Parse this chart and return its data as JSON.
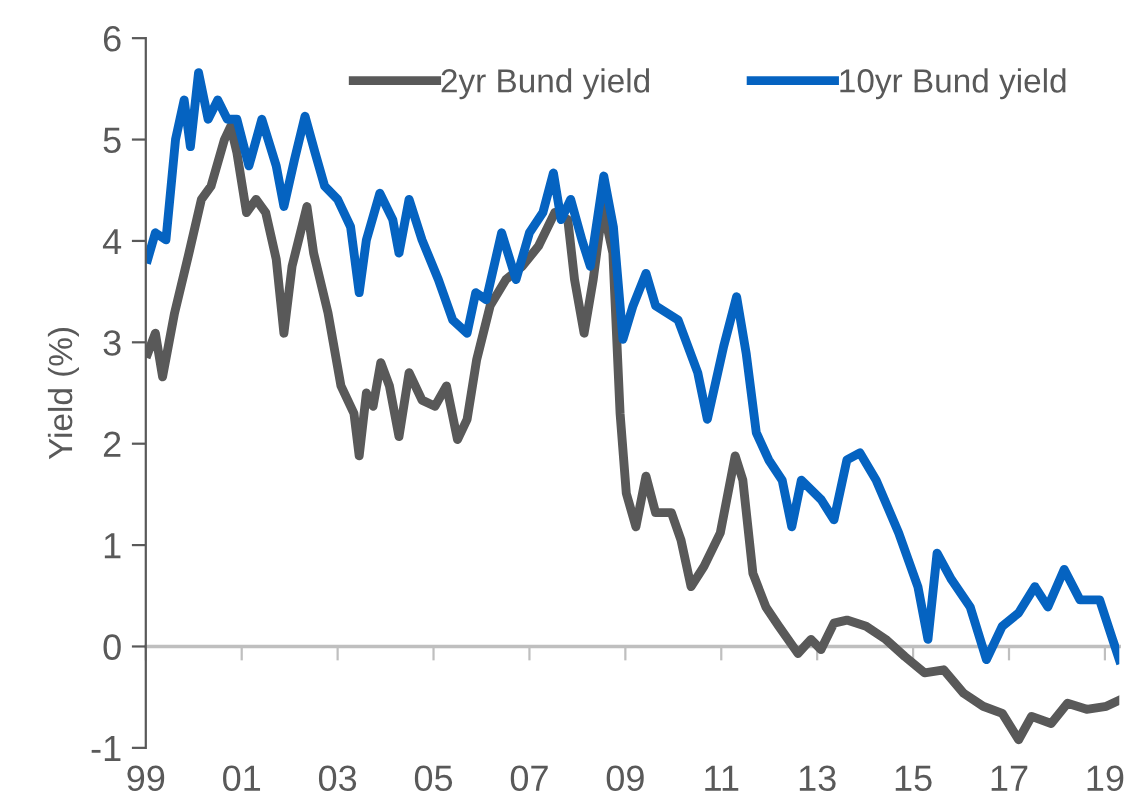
{
  "chart_data": {
    "type": "line",
    "ylabel": "Yield (%)",
    "xlim": [
      1999,
      2019.3
    ],
    "xticks": [
      {
        "value": 1999,
        "label": "99"
      },
      {
        "value": 2001,
        "label": "01"
      },
      {
        "value": 2003,
        "label": "03"
      },
      {
        "value": 2005,
        "label": "05"
      },
      {
        "value": 2007,
        "label": "07"
      },
      {
        "value": 2009,
        "label": "09"
      },
      {
        "value": 2011,
        "label": "11"
      },
      {
        "value": 2013,
        "label": "13"
      },
      {
        "value": 2015,
        "label": "15"
      },
      {
        "value": 2017,
        "label": "17"
      },
      {
        "value": 2019,
        "label": "19"
      }
    ],
    "ylim": [
      -1,
      6
    ],
    "yticks": [
      -1,
      0,
      1,
      2,
      3,
      4,
      5,
      6
    ],
    "legend": "top",
    "marker": "none",
    "line_style": "solid",
    "series": [
      {
        "name": "2yr Bund yield",
        "color": "#595959",
        "x": [
          1999.04,
          1999.2,
          1999.35,
          1999.6,
          1999.9,
          2000.16,
          2000.36,
          2000.64,
          2000.77,
          2000.9,
          2001.1,
          2001.3,
          2001.5,
          2001.72,
          2001.88,
          2002.05,
          2002.36,
          2002.5,
          2002.8,
          2003.07,
          2003.34,
          2003.45,
          2003.6,
          2003.74,
          2003.9,
          2004.08,
          2004.28,
          2004.49,
          2004.76,
          2005.03,
          2005.27,
          2005.5,
          2005.7,
          2005.9,
          2006.18,
          2006.51,
          2006.85,
          2007.19,
          2007.53,
          2007.8,
          2007.94,
          2008.14,
          2008.33,
          2008.53,
          2008.74,
          2008.89,
          2009.02,
          2009.22,
          2009.43,
          2009.63,
          2009.96,
          2010.16,
          2010.37,
          2010.64,
          2010.98,
          2011.29,
          2011.45,
          2011.66,
          2011.93,
          2012.2,
          2012.6,
          2012.87,
          2013.08,
          2013.35,
          2013.62,
          2014.02,
          2014.43,
          2014.83,
          2015.24,
          2015.64,
          2016.05,
          2016.46,
          2016.86,
          2017.2,
          2017.47,
          2017.88,
          2018.22,
          2018.62,
          2019.03,
          2019.3
        ],
        "values": [
          2.89,
          3.09,
          2.66,
          3.29,
          3.88,
          4.41,
          4.54,
          5.0,
          5.13,
          4.87,
          4.28,
          4.41,
          4.28,
          3.82,
          3.09,
          3.75,
          4.34,
          3.88,
          3.29,
          2.57,
          2.3,
          1.88,
          2.5,
          2.37,
          2.8,
          2.57,
          2.07,
          2.7,
          2.43,
          2.37,
          2.57,
          2.04,
          2.24,
          2.83,
          3.36,
          3.62,
          3.75,
          3.95,
          4.28,
          4.21,
          3.62,
          3.09,
          3.62,
          4.34,
          3.88,
          2.3,
          1.51,
          1.18,
          1.68,
          1.32,
          1.32,
          1.05,
          0.59,
          0.79,
          1.12,
          1.88,
          1.64,
          0.72,
          0.39,
          0.2,
          -0.07,
          0.07,
          -0.03,
          0.23,
          0.26,
          0.2,
          0.07,
          -0.1,
          -0.26,
          -0.23,
          -0.46,
          -0.59,
          -0.66,
          -0.92,
          -0.69,
          -0.76,
          -0.56,
          -0.62,
          -0.59,
          -0.53
        ]
      },
      {
        "name": "10yr Bund yield",
        "color": "#0563c1",
        "x": [
          1999.04,
          1999.2,
          1999.42,
          1999.62,
          1999.8,
          1999.93,
          2000.1,
          2000.3,
          2000.5,
          2000.7,
          2000.9,
          2001.15,
          2001.42,
          2001.72,
          2001.88,
          2002.1,
          2002.32,
          2002.53,
          2002.73,
          2003.0,
          2003.27,
          2003.45,
          2003.6,
          2003.88,
          2004.15,
          2004.28,
          2004.49,
          2004.76,
          2005.1,
          2005.4,
          2005.7,
          2005.88,
          2006.1,
          2006.42,
          2006.72,
          2007.0,
          2007.28,
          2007.5,
          2007.66,
          2007.86,
          2008.1,
          2008.27,
          2008.55,
          2008.75,
          2008.95,
          2009.16,
          2009.43,
          2009.63,
          2010.1,
          2010.51,
          2010.71,
          2011.05,
          2011.32,
          2011.52,
          2011.73,
          2011.99,
          2012.27,
          2012.47,
          2012.67,
          2013.08,
          2013.35,
          2013.62,
          2013.89,
          2014.23,
          2014.7,
          2015.1,
          2015.31,
          2015.5,
          2015.8,
          2016.19,
          2016.53,
          2016.86,
          2017.2,
          2017.54,
          2017.81,
          2018.15,
          2018.48,
          2018.89,
          2019.16,
          2019.3
        ],
        "values": [
          3.82,
          4.08,
          4.01,
          5.0,
          5.39,
          4.93,
          5.66,
          5.2,
          5.39,
          5.2,
          5.2,
          4.74,
          5.2,
          4.74,
          4.34,
          4.8,
          5.23,
          4.87,
          4.54,
          4.41,
          4.14,
          3.49,
          4.01,
          4.47,
          4.21,
          3.88,
          4.41,
          4.01,
          3.62,
          3.22,
          3.09,
          3.49,
          3.42,
          4.08,
          3.62,
          4.08,
          4.28,
          4.67,
          4.21,
          4.41,
          4.0,
          3.75,
          4.64,
          4.14,
          3.03,
          3.36,
          3.68,
          3.36,
          3.22,
          2.7,
          2.24,
          2.96,
          3.45,
          2.89,
          2.11,
          1.84,
          1.64,
          1.18,
          1.64,
          1.45,
          1.25,
          1.84,
          1.91,
          1.64,
          1.12,
          0.59,
          0.07,
          0.92,
          0.66,
          0.39,
          -0.13,
          0.2,
          0.33,
          0.59,
          0.39,
          0.76,
          0.46,
          0.46,
          0.07,
          -0.13
        ]
      }
    ]
  }
}
